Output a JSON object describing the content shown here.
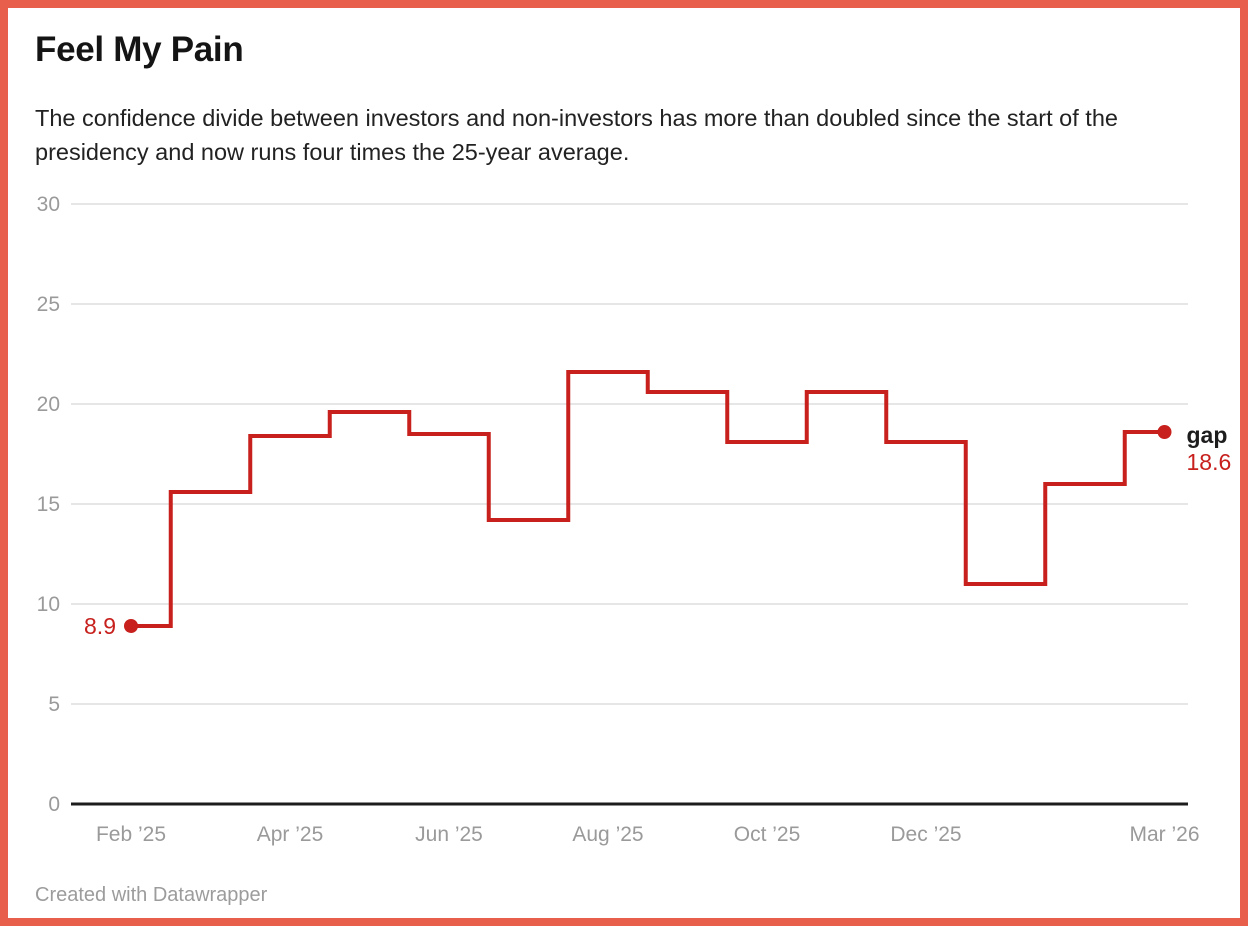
{
  "header": {
    "title": "Feel My Pain",
    "description": "The confidence divide between investors and non-investors has more than doubled since the start of the presidency and now runs four times the 25-year average."
  },
  "chart_data": {
    "type": "line",
    "interpolation": "step-center",
    "title": "Feel My Pain",
    "x": [
      "Feb ’25",
      "Mar ’25",
      "Apr ’25",
      "May ’25",
      "Jun ’25",
      "Jul ’25",
      "Aug ’25",
      "Sep ’25",
      "Oct ’25",
      "Nov ’25",
      "Dec ’25",
      "Jan ’26",
      "Feb ’26",
      "Mar ’26"
    ],
    "series": [
      {
        "name": "gap",
        "values": [
          8.9,
          15.6,
          18.4,
          19.6,
          18.5,
          14.2,
          21.6,
          20.6,
          18.1,
          20.6,
          18.1,
          11.0,
          16.0,
          18.6
        ]
      }
    ],
    "y_ticks": [
      0,
      5,
      10,
      15,
      20,
      25,
      30
    ],
    "ylim": [
      0,
      30
    ],
    "x_tick_labels": [
      "Feb ’25",
      "Apr ’25",
      "Jun ’25",
      "Aug ’25",
      "Oct ’25",
      "Dec ’25",
      "Mar ’26"
    ],
    "start_point_label": "8.9",
    "end_point_label": "18.6",
    "series_label": "gap",
    "grid": true,
    "legend_position": "end-of-line"
  },
  "colors": {
    "line": "#c7201d",
    "frame_border": "#e8604c",
    "grid": "#e6e6e6",
    "axis_baseline": "#1d1d1d",
    "axis_text": "#9a9a9a",
    "value_label": "#c7201d",
    "series_label": "#1d1d1d"
  },
  "footer": {
    "attribution": "Created with Datawrapper"
  }
}
